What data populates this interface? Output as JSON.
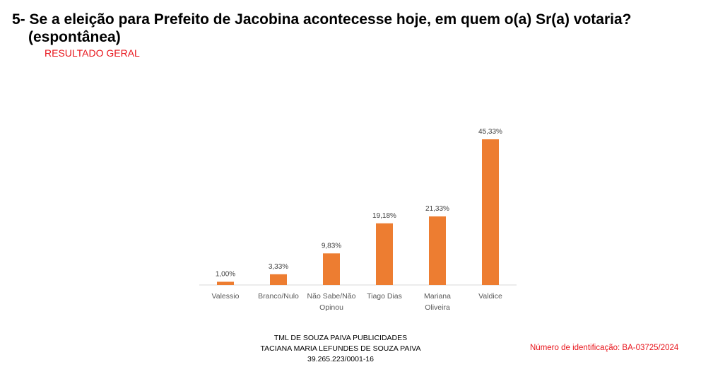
{
  "header": {
    "title_line1": "5- Se a eleição para Prefeito de Jacobina acontecesse hoje, em quem o(a) Sr(a) votaria?",
    "title_line2": "(espontânea)",
    "subtitle": "RESULTADO GERAL"
  },
  "colors": {
    "bar": "#ED7D31",
    "subtitle": "#E8141B",
    "axis": "#D9D9D9"
  },
  "chart_data": {
    "type": "bar",
    "categories": [
      "Valessio",
      "Branco/Nulo",
      "Não Sabe/Não Opinou",
      "Tiago Dias",
      "Mariana Oliveira",
      "Valdice"
    ],
    "category_lines": [
      [
        "Valessio"
      ],
      [
        "Branco/Nulo"
      ],
      [
        "Não Sabe/Não",
        "Opinou"
      ],
      [
        "Tiago Dias"
      ],
      [
        "Mariana",
        "Oliveira"
      ],
      [
        "Valdice"
      ]
    ],
    "values": [
      1.0,
      3.33,
      9.83,
      19.18,
      21.33,
      45.33
    ],
    "value_labels": [
      "1,00%",
      "3,33%",
      "9,83%",
      "19,18%",
      "21,33%",
      "45,33%"
    ],
    "ylim": [
      0,
      45.33
    ],
    "grid": false,
    "legend": "none"
  },
  "footer": {
    "line1": "TML DE SOUZA PAIVA PUBLICIDADES",
    "line2": "TACIANA MARIA LEFUNDES DE SOUZA PAIVA",
    "line3": "39.265.223/0001-16",
    "identification": "Número de identificação: BA-03725/2024"
  }
}
